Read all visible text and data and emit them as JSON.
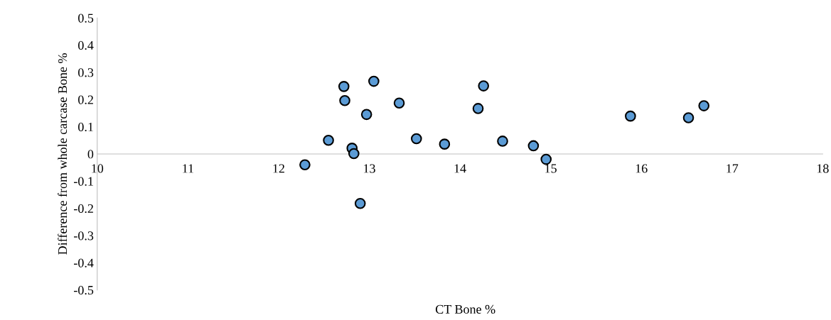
{
  "chart_data": {
    "type": "scatter",
    "xlabel": "CT Bone %",
    "ylabel": "Difference from whole carcase Bone %",
    "xlim": [
      10,
      18
    ],
    "xticks": [
      10,
      11,
      12,
      13,
      14,
      15,
      16,
      17,
      18
    ],
    "ylim": [
      -0.5,
      0.5
    ],
    "yticks": [
      -0.5,
      -0.4,
      -0.3,
      -0.2,
      -0.1,
      0,
      0.1,
      0.2,
      0.3,
      0.4,
      0.5
    ],
    "grid": false,
    "marker": "circle",
    "series": [
      {
        "color": "#5b9bd5",
        "x": [
          12.29,
          12.55,
          12.72,
          12.73,
          13.05,
          12.97,
          13.33,
          13.52,
          13.83,
          12.81,
          12.83,
          12.9,
          14.26,
          14.2,
          14.47,
          14.81,
          14.95,
          15.88,
          16.52,
          16.69
        ],
        "values": [
          -0.04,
          0.05,
          0.248,
          0.196,
          0.267,
          0.145,
          0.187,
          0.056,
          0.036,
          0.021,
          0.001,
          -0.182,
          0.25,
          0.167,
          0.047,
          0.03,
          -0.02,
          0.139,
          0.133,
          0.177
        ]
      }
    ]
  }
}
